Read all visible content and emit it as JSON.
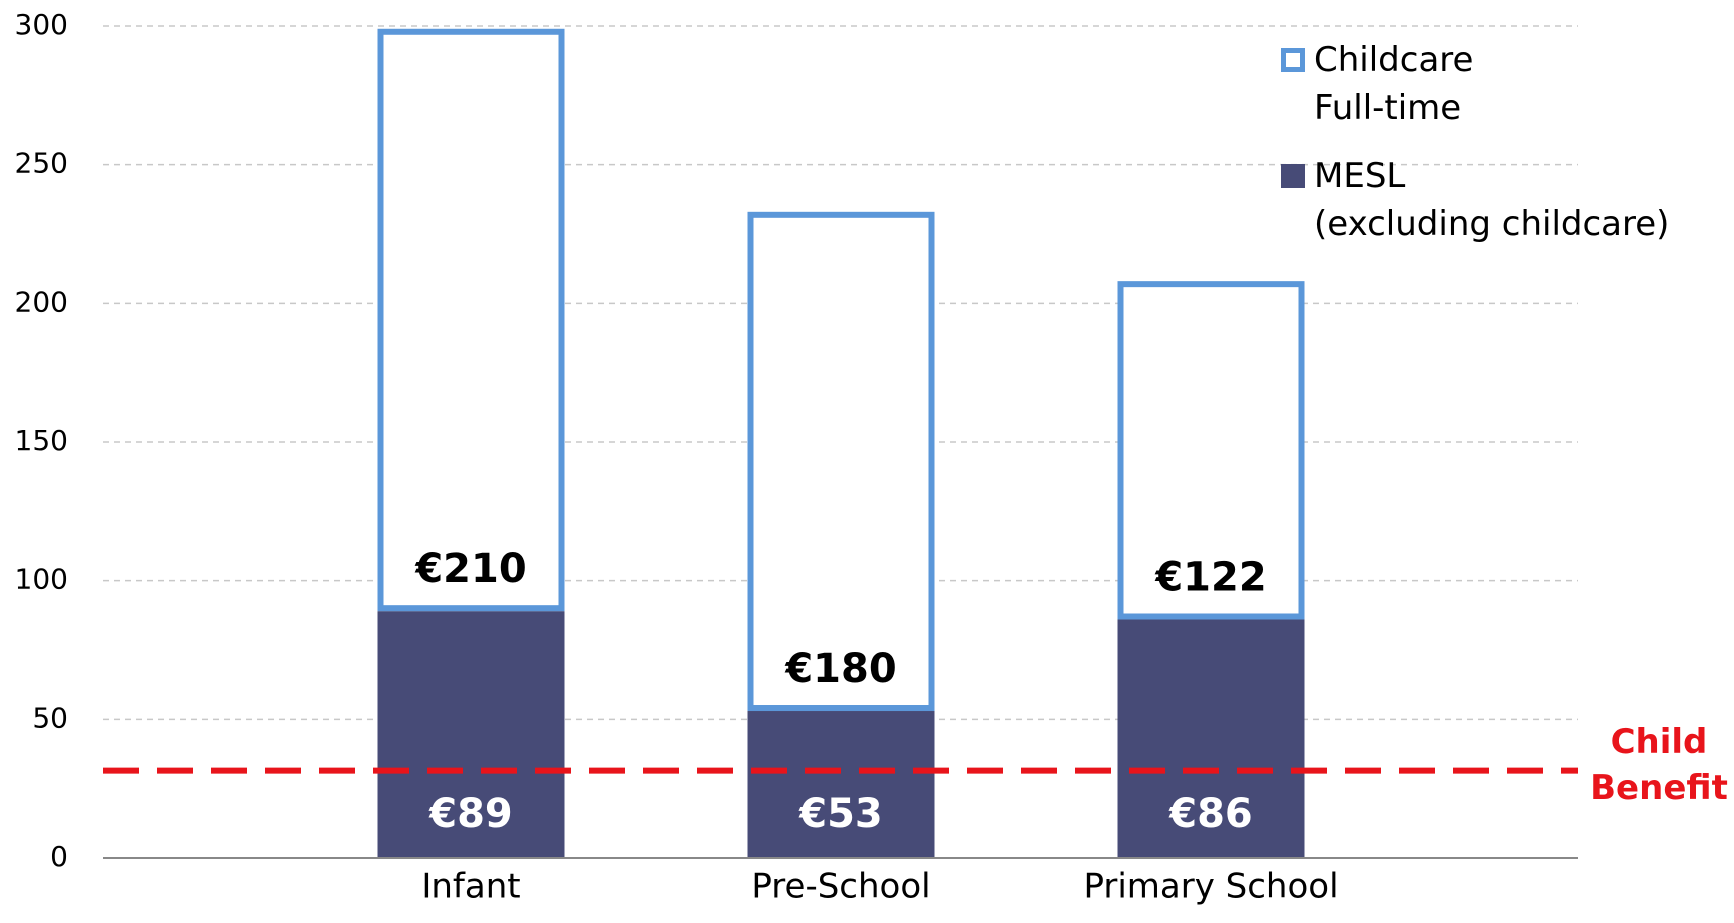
{
  "chart_data": {
    "type": "stacked_bar",
    "categories": [
      "Infant",
      "Pre-School",
      "Primary School"
    ],
    "series": [
      {
        "name": "MESL\n(excluding childcare)",
        "color": "#474b77",
        "fill": true,
        "values": [
          89,
          53,
          86
        ],
        "value_labels": [
          "€89",
          "€53",
          "€86"
        ],
        "label_color": "#ffffff"
      },
      {
        "name": "Childcare\nFull-time",
        "color": "#5b97d9",
        "fill": false,
        "values": [
          210,
          180,
          122
        ],
        "value_labels": [
          "€210",
          "€180",
          "€122"
        ],
        "label_color": "#000000"
      }
    ],
    "ylim": [
      0,
      300
    ],
    "yticks": [
      0,
      50,
      100,
      150,
      200,
      250,
      300
    ],
    "grid": true,
    "legend": "upper right",
    "reference_line": {
      "value": 31.5,
      "label": "Child\nBenefit",
      "color": "#e8141b"
    }
  }
}
